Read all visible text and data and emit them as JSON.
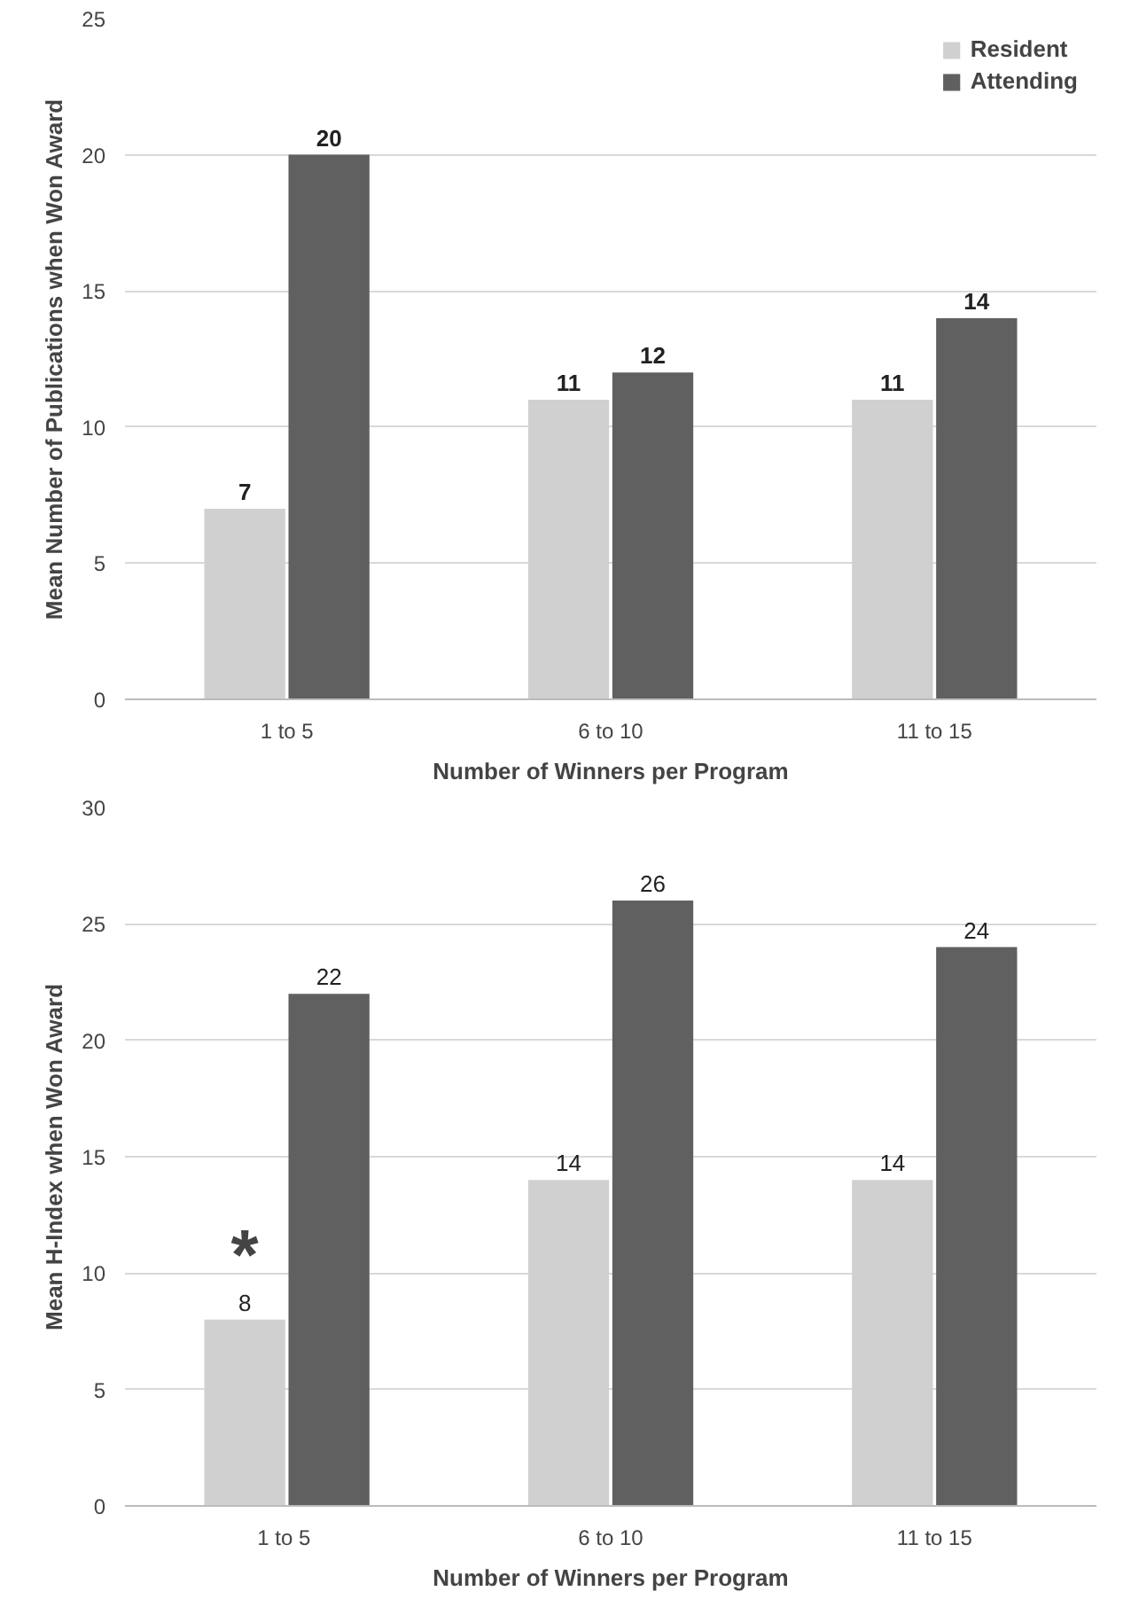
{
  "chart_data": [
    {
      "type": "bar",
      "categories": [
        "1 to 5",
        "6 to 10",
        "11 to 15"
      ],
      "xlabel": "Number of Winners per Program",
      "ylabel": "Mean Number of Publications when Won Award",
      "ylim": [
        0,
        25
      ],
      "yticks": [
        0,
        5,
        10,
        15,
        20,
        25
      ],
      "grid": "y",
      "legend": "top right",
      "data_labels": true,
      "series": [
        {
          "name": "Resident",
          "color": "#d0d0d0",
          "values": [
            7,
            11,
            11
          ]
        },
        {
          "name": "Attending",
          "color": "#606060",
          "values": [
            20,
            12,
            14
          ]
        }
      ]
    },
    {
      "type": "bar",
      "categories": [
        "1  to 5",
        "6 to 10",
        "11 to 15"
      ],
      "xlabel": "Number of Winners per Program",
      "ylabel": "Mean H-Index when Won Award",
      "ylim": [
        0,
        30
      ],
      "yticks": [
        0,
        5,
        10,
        15,
        20,
        25,
        30
      ],
      "grid": "y",
      "data_labels": true,
      "annotations": [
        {
          "text": "*",
          "x": "1  to 5",
          "y": 8
        }
      ],
      "series": [
        {
          "color": "#d0d0d0",
          "values": [
            8,
            14,
            14
          ]
        },
        {
          "color": "#606060",
          "values": [
            22,
            26,
            24
          ]
        }
      ]
    }
  ]
}
